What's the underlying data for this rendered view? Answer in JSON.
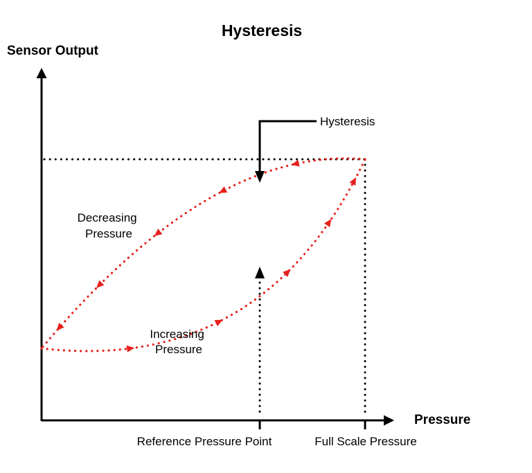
{
  "title": "Hysteresis",
  "y_axis_label": "Sensor Output",
  "x_axis_label": "Pressure",
  "annotations": {
    "hysteresis": "Hysteresis",
    "decreasing": [
      "Decreasing",
      "Pressure"
    ],
    "increasing": [
      "Increasing",
      "Pressure"
    ]
  },
  "x_tick_labels": {
    "reference": "Reference Pressure Point",
    "full_scale": "Full Scale Pressure"
  },
  "colors": {
    "curve": "#e8201c",
    "axis": "#000000"
  }
}
